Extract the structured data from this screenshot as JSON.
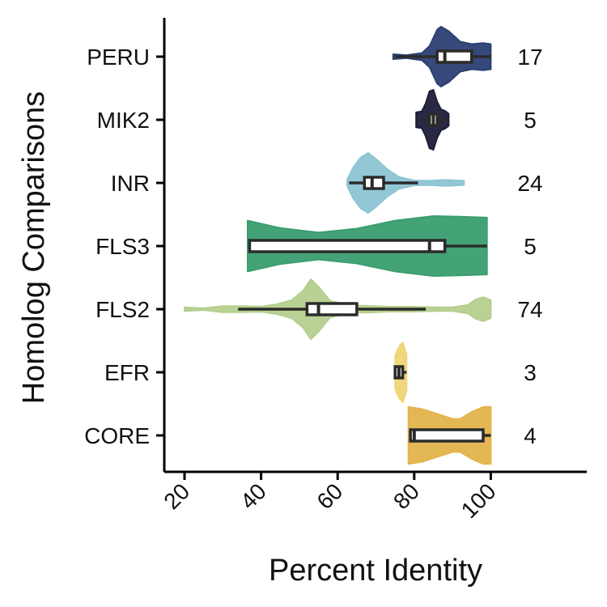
{
  "chart_data": {
    "type": "violin",
    "xlabel": "Percent Identity",
    "ylabel": "Homolog Comparisons",
    "xlim": [
      15,
      125
    ],
    "x_ticks": [
      20,
      40,
      60,
      80,
      100
    ],
    "x_tick_labels": [
      "20",
      "40",
      "60",
      "80",
      "100"
    ],
    "grid": false,
    "legend": "none",
    "categories": [
      "PERU",
      "MIK2",
      "INR",
      "FLS3",
      "FLS2",
      "EFR",
      "CORE"
    ],
    "counts": [
      "17",
      "5",
      "24",
      "5",
      "74",
      "3",
      "4"
    ],
    "groups": [
      {
        "name": "PERU",
        "n": 17,
        "color": "#2b3f73",
        "box": {
          "min": 75,
          "q1": 86,
          "median": 88,
          "q3": 95,
          "max": 100
        },
        "violin": [
          [
            74.5,
            0.08
          ],
          [
            78,
            0.05
          ],
          [
            82,
            0.12
          ],
          [
            84,
            0.35
          ],
          [
            86,
            0.9
          ],
          [
            87,
            1.0
          ],
          [
            89,
            0.85
          ],
          [
            92,
            0.5
          ],
          [
            95,
            0.42
          ],
          [
            98,
            0.45
          ],
          [
            100,
            0.42
          ]
        ]
      },
      {
        "name": "MIK2",
        "n": 5,
        "color": "#1d1e3b",
        "box": {
          "min": 81,
          "q1": 84,
          "median": 85,
          "q3": 86,
          "max": 89
        },
        "violin": [
          [
            80.5,
            0.25
          ],
          [
            82,
            0.28
          ],
          [
            83,
            0.55
          ],
          [
            84,
            0.95
          ],
          [
            85,
            1.0
          ],
          [
            86,
            0.6
          ],
          [
            87,
            0.35
          ],
          [
            88,
            0.3
          ],
          [
            89,
            0.2
          ]
        ]
      },
      {
        "name": "INR",
        "n": 24,
        "color": "#8dc4d4",
        "box": {
          "min": 63,
          "q1": 67,
          "median": 69,
          "q3": 72,
          "max": 81
        },
        "violin": [
          [
            62.5,
            0.1
          ],
          [
            64,
            0.5
          ],
          [
            66,
            0.85
          ],
          [
            68,
            1.0
          ],
          [
            70,
            0.8
          ],
          [
            73,
            0.45
          ],
          [
            76,
            0.2
          ],
          [
            80,
            0.08
          ],
          [
            84,
            0.07
          ],
          [
            88,
            0.1
          ],
          [
            93,
            0.07
          ]
        ]
      },
      {
        "name": "FLS3",
        "n": 5,
        "color": "#3a9e6f",
        "box": {
          "min": 37,
          "q1": 37,
          "median": 84,
          "q3": 88,
          "max": 99
        },
        "violin": [
          [
            36.5,
            0.85
          ],
          [
            45,
            0.6
          ],
          [
            55,
            0.45
          ],
          [
            65,
            0.58
          ],
          [
            75,
            0.85
          ],
          [
            85,
            1.0
          ],
          [
            92,
            0.98
          ],
          [
            99,
            0.95
          ]
        ]
      },
      {
        "name": "FLS2",
        "n": 74,
        "color": "#b5cf8e",
        "box": {
          "min": 34,
          "q1": 52,
          "median": 55,
          "q3": 65,
          "max": 83
        },
        "violin": [
          [
            20,
            0.06
          ],
          [
            25,
            0.03
          ],
          [
            30,
            0.1
          ],
          [
            35,
            0.1
          ],
          [
            40,
            0.09
          ],
          [
            44,
            0.16
          ],
          [
            48,
            0.3
          ],
          [
            51,
            0.62
          ],
          [
            53,
            1.0
          ],
          [
            55,
            0.75
          ],
          [
            58,
            0.28
          ],
          [
            62,
            0.15
          ],
          [
            66,
            0.12
          ],
          [
            70,
            0.1
          ],
          [
            74,
            0.08
          ],
          [
            80,
            0.08
          ],
          [
            86,
            0.06
          ],
          [
            90,
            0.06
          ],
          [
            94,
            0.14
          ],
          [
            96,
            0.32
          ],
          [
            98,
            0.4
          ],
          [
            100,
            0.3
          ]
        ]
      },
      {
        "name": "EFR",
        "n": 3,
        "color": "#efd574",
        "box": {
          "min": 75,
          "q1": 75,
          "median": 76,
          "q3": 77,
          "max": 78
        },
        "violin": [
          [
            75,
            0.55
          ],
          [
            75.5,
            0.7
          ],
          [
            76,
            0.85
          ],
          [
            77,
            1.0
          ],
          [
            78,
            0.6
          ]
        ]
      },
      {
        "name": "CORE",
        "n": 4,
        "color": "#e3b34c",
        "box": {
          "min": 79,
          "q1": 79,
          "median": 80,
          "q3": 98,
          "max": 100
        },
        "violin": [
          [
            78.5,
            0.95
          ],
          [
            82,
            0.88
          ],
          [
            86,
            0.72
          ],
          [
            90,
            0.55
          ],
          [
            92,
            0.55
          ],
          [
            95,
            0.78
          ],
          [
            98,
            0.95
          ],
          [
            100,
            0.95
          ]
        ]
      }
    ]
  }
}
